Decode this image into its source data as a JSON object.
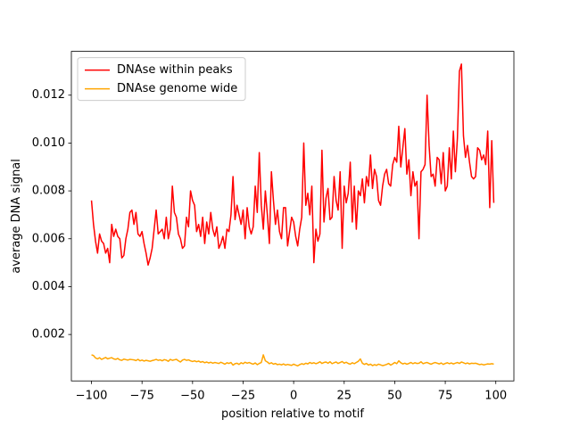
{
  "chart_data": {
    "type": "line",
    "x_label": "position relative to motif",
    "y_label": "average DNA signal",
    "x": [
      -100,
      -99,
      -98,
      -97,
      -96,
      -95,
      -94,
      -93,
      -92,
      -91,
      -90,
      -89,
      -88,
      -87,
      -86,
      -85,
      -84,
      -83,
      -82,
      -81,
      -80,
      -79,
      -78,
      -77,
      -76,
      -75,
      -74,
      -73,
      -72,
      -71,
      -70,
      -69,
      -68,
      -67,
      -66,
      -65,
      -64,
      -63,
      -62,
      -61,
      -60,
      -59,
      -58,
      -57,
      -56,
      -55,
      -54,
      -53,
      -52,
      -51,
      -50,
      -49,
      -48,
      -47,
      -46,
      -45,
      -44,
      -43,
      -42,
      -41,
      -40,
      -39,
      -38,
      -37,
      -36,
      -35,
      -34,
      -33,
      -32,
      -31,
      -30,
      -29,
      -28,
      -27,
      -26,
      -25,
      -24,
      -23,
      -22,
      -21,
      -20,
      -19,
      -18,
      -17,
      -16,
      -15,
      -14,
      -13,
      -12,
      -11,
      -10,
      -9,
      -8,
      -7,
      -6,
      -5,
      -4,
      -3,
      -2,
      -1,
      0,
      1,
      2,
      3,
      4,
      5,
      6,
      7,
      8,
      9,
      10,
      11,
      12,
      13,
      14,
      15,
      16,
      17,
      18,
      19,
      20,
      21,
      22,
      23,
      24,
      25,
      26,
      27,
      28,
      29,
      30,
      31,
      32,
      33,
      34,
      35,
      36,
      37,
      38,
      39,
      40,
      41,
      42,
      43,
      44,
      45,
      46,
      47,
      48,
      49,
      50,
      51,
      52,
      53,
      54,
      55,
      56,
      57,
      58,
      59,
      60,
      61,
      62,
      63,
      64,
      65,
      66,
      67,
      68,
      69,
      70,
      71,
      72,
      73,
      74,
      75,
      76,
      77,
      78,
      79,
      80,
      81,
      82,
      83,
      84,
      85,
      86,
      87,
      88,
      89,
      90,
      91,
      92,
      93,
      94,
      95,
      96,
      97,
      98,
      99
    ],
    "series": [
      {
        "name": "DNAse within peaks",
        "color": "#ff0000",
        "values": [
          0.0076,
          0.0066,
          0.0059,
          0.0054,
          0.0062,
          0.0059,
          0.0058,
          0.0054,
          0.0056,
          0.005,
          0.0066,
          0.0061,
          0.0064,
          0.0061,
          0.006,
          0.0052,
          0.0053,
          0.006,
          0.0064,
          0.0071,
          0.0072,
          0.0066,
          0.0071,
          0.0062,
          0.0061,
          0.0063,
          0.0058,
          0.0054,
          0.0049,
          0.0052,
          0.0056,
          0.0064,
          0.0072,
          0.0062,
          0.0063,
          0.0064,
          0.006,
          0.0069,
          0.006,
          0.0064,
          0.0082,
          0.0071,
          0.0069,
          0.0062,
          0.006,
          0.0056,
          0.0057,
          0.0069,
          0.0065,
          0.008,
          0.0076,
          0.0074,
          0.0063,
          0.0066,
          0.0061,
          0.0069,
          0.0058,
          0.0067,
          0.0062,
          0.0071,
          0.0064,
          0.0061,
          0.0065,
          0.0056,
          0.0058,
          0.0061,
          0.0056,
          0.0064,
          0.0063,
          0.007,
          0.0086,
          0.0068,
          0.0074,
          0.007,
          0.0066,
          0.0072,
          0.006,
          0.0073,
          0.0065,
          0.0062,
          0.0065,
          0.0082,
          0.0071,
          0.0096,
          0.0074,
          0.0064,
          0.008,
          0.007,
          0.0058,
          0.0088,
          0.0076,
          0.0066,
          0.0072,
          0.0063,
          0.006,
          0.0073,
          0.0073,
          0.0057,
          0.0063,
          0.0069,
          0.0067,
          0.0061,
          0.0057,
          0.0064,
          0.0069,
          0.01,
          0.0074,
          0.0079,
          0.007,
          0.0082,
          0.005,
          0.0064,
          0.0059,
          0.0062,
          0.0097,
          0.0067,
          0.0077,
          0.0081,
          0.0068,
          0.0069,
          0.0086,
          0.0076,
          0.0072,
          0.0088,
          0.0056,
          0.0082,
          0.0075,
          0.0079,
          0.0092,
          0.0067,
          0.0082,
          0.0064,
          0.008,
          0.0078,
          0.0085,
          0.0075,
          0.0086,
          0.0082,
          0.0095,
          0.0081,
          0.0089,
          0.0086,
          0.0076,
          0.0074,
          0.0082,
          0.0087,
          0.0089,
          0.0083,
          0.0082,
          0.0091,
          0.0094,
          0.0092,
          0.0107,
          0.009,
          0.0098,
          0.0106,
          0.0087,
          0.0093,
          0.0078,
          0.0088,
          0.0082,
          0.0084,
          0.006,
          0.0088,
          0.0089,
          0.0091,
          0.012,
          0.0099,
          0.0086,
          0.0087,
          0.0082,
          0.0094,
          0.0093,
          0.0083,
          0.0096,
          0.008,
          0.0082,
          0.0098,
          0.0085,
          0.0105,
          0.0088,
          0.0102,
          0.013,
          0.0133,
          0.0103,
          0.0094,
          0.0099,
          0.0092,
          0.0086,
          0.0085,
          0.0086,
          0.0098,
          0.0097,
          0.0093,
          0.0095,
          0.0091,
          0.0105,
          0.0073,
          0.0101,
          0.0075
        ]
      },
      {
        "name": "DNAse genome wide",
        "color": "#ffa500",
        "values": [
          0.00115,
          0.00112,
          0.00102,
          0.00098,
          0.00103,
          0.00096,
          0.001,
          0.00104,
          0.00098,
          0.00101,
          0.00103,
          0.00098,
          0.00096,
          0.001,
          0.00094,
          0.00092,
          0.00097,
          0.00095,
          0.00093,
          0.00096,
          0.00095,
          0.00094,
          0.00091,
          0.00096,
          0.0009,
          0.00093,
          0.00089,
          0.00092,
          0.0009,
          0.00088,
          0.00091,
          0.00093,
          0.00096,
          0.00092,
          0.00094,
          0.0009,
          0.00095,
          0.00093,
          0.00088,
          0.00096,
          0.00092,
          0.00094,
          0.00096,
          0.0009,
          0.00085,
          0.00093,
          0.00096,
          0.00092,
          0.00094,
          0.0009,
          0.00087,
          0.0009,
          0.00086,
          0.00089,
          0.00084,
          0.00087,
          0.00082,
          0.00085,
          0.00081,
          0.00084,
          0.0008,
          0.00083,
          0.00081,
          0.00079,
          0.00084,
          0.0008,
          0.00076,
          0.00082,
          0.00079,
          0.00083,
          0.00072,
          0.00078,
          0.0008,
          0.00075,
          0.00082,
          0.00078,
          0.00084,
          0.0008,
          0.00083,
          0.00079,
          0.00076,
          0.00081,
          0.00074,
          0.00079,
          0.00083,
          0.00115,
          0.0009,
          0.00085,
          0.00078,
          0.00082,
          0.00076,
          0.00079,
          0.00074,
          0.00076,
          0.00073,
          0.00077,
          0.00072,
          0.00075,
          0.00073,
          0.00071,
          0.00076,
          0.00072,
          0.00069,
          0.00074,
          0.00078,
          0.00075,
          0.0008,
          0.00077,
          0.00083,
          0.00079,
          0.00082,
          0.00078,
          0.00081,
          0.00086,
          0.00079,
          0.00083,
          0.00085,
          0.0008,
          0.00086,
          0.00078,
          0.00082,
          0.00085,
          0.00079,
          0.00083,
          0.00087,
          0.0008,
          0.00084,
          0.00079,
          0.00076,
          0.00082,
          0.00078,
          0.00083,
          0.00088,
          0.00098,
          0.0008,
          0.00075,
          0.00079,
          0.00072,
          0.00076,
          0.0007,
          0.00074,
          0.00071,
          0.00076,
          0.00073,
          0.0007,
          0.00072,
          0.00075,
          0.00079,
          0.00072,
          0.00077,
          0.00083,
          0.00078,
          0.0009,
          0.00082,
          0.00077,
          0.0008,
          0.00076,
          0.00079,
          0.00083,
          0.00078,
          0.00082,
          0.00079,
          0.0008,
          0.00086,
          0.00078,
          0.00081,
          0.00083,
          0.00079,
          0.00076,
          0.0008,
          0.00083,
          0.0008,
          0.00077,
          0.00081,
          0.00075,
          0.00079,
          0.00082,
          0.00078,
          0.00081,
          0.00077,
          0.0008,
          0.00083,
          0.00079,
          0.00085,
          0.00082,
          0.00078,
          0.00081,
          0.00077,
          0.0008,
          0.00079,
          0.0008,
          0.00077,
          0.00074,
          0.00076,
          0.00073,
          0.00075,
          0.00077,
          0.00076,
          0.00078,
          0.00076
        ]
      }
    ],
    "xlim": [
      -109.95,
      108.95
    ],
    "ylim": [
      6e-05,
      0.01383
    ],
    "xticks": [
      {
        "value": -100,
        "label": "−100"
      },
      {
        "value": -75,
        "label": "−75"
      },
      {
        "value": -50,
        "label": "−50"
      },
      {
        "value": -25,
        "label": "−25"
      },
      0,
      25,
      50,
      75,
      100
    ],
    "yticks": [
      0.002,
      0.004,
      0.006,
      0.008,
      {
        "value": 0.01,
        "label": "0.010"
      },
      0.012
    ],
    "grid": false,
    "legend": "upper-left"
  }
}
